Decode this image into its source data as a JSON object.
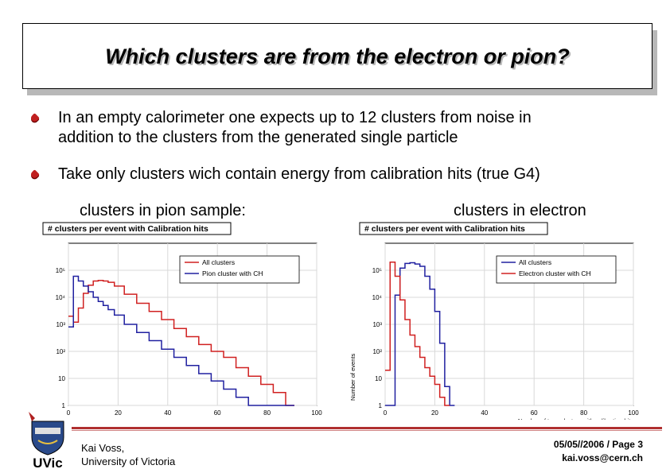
{
  "slide": {
    "title": "Which clusters are from the electron or pion?",
    "bullets": [
      {
        "line1": "In an empty calorimeter one expects up to 12 clusters from noise in",
        "line2": "addition to the clusters from the generated single particle"
      },
      {
        "line1": "Take only clusters wich contain energy from calibration hits (true G4)"
      }
    ],
    "subtitles": {
      "pion": "clusters in pion sample:",
      "electron": "clusters in electron"
    },
    "footer": {
      "author": "Kai  Voss,",
      "institution": "University of Victoria",
      "date_page": "05/05//2006  /  Page 3",
      "email": "kai.voss@cern.ch",
      "logo_text": "UVic"
    }
  },
  "chart_data": [
    {
      "type": "line",
      "title": "# clusters per event with Calibration hits",
      "xlim": [
        0,
        100
      ],
      "x_ticks": [
        "0",
        "20",
        "40",
        "60",
        "80",
        "100"
      ],
      "y_scale": "log",
      "y_ticks": [
        "1",
        "10",
        "10²",
        "10³",
        "10⁴",
        "10⁵"
      ],
      "xlabel": "",
      "ylabel": "",
      "legend": "top-right",
      "series": [
        {
          "name": "All clusters",
          "color": "#d02020",
          "x": [
            1,
            3,
            5,
            7,
            9,
            11,
            13,
            15,
            17,
            20,
            25,
            30,
            35,
            40,
            45,
            50,
            55,
            60,
            65,
            70,
            75,
            80,
            85,
            90
          ],
          "y": [
            2000,
            1200,
            4000,
            14000,
            28000,
            40000,
            42000,
            40000,
            36000,
            26000,
            13000,
            6000,
            3000,
            1500,
            700,
            350,
            180,
            100,
            60,
            25,
            12,
            6,
            3,
            1
          ]
        },
        {
          "name": "Pion cluster with CH",
          "color": "#2020a0",
          "x": [
            1,
            3,
            5,
            7,
            9,
            11,
            13,
            15,
            17,
            20,
            25,
            30,
            35,
            40,
            45,
            50,
            55,
            60,
            65,
            70,
            75,
            80,
            85,
            90
          ],
          "y": [
            800,
            60000,
            40000,
            26000,
            16000,
            10000,
            7000,
            5000,
            3500,
            2200,
            1000,
            500,
            250,
            120,
            60,
            30,
            15,
            8,
            4,
            2,
            1,
            1,
            1,
            1
          ]
        }
      ]
    },
    {
      "type": "line",
      "title": "# clusters per event with Calibration hits",
      "xlim": [
        0,
        100
      ],
      "x_ticks": [
        "0",
        "20",
        "40",
        "60",
        "80",
        "100"
      ],
      "y_scale": "log",
      "y_ticks": [
        "1",
        "10",
        "10²",
        "10³",
        "10⁴",
        "10⁵"
      ],
      "xlabel": "Number of topo clusters with calibration hits",
      "ylabel": "Number of events",
      "legend": "top-right",
      "series": [
        {
          "name": "All clusters",
          "color": "#2020a0",
          "x": [
            1,
            3,
            5,
            7,
            9,
            11,
            13,
            15,
            17,
            19,
            21,
            23,
            25,
            27
          ],
          "y": [
            1,
            1,
            12000,
            120000,
            180000,
            190000,
            170000,
            140000,
            60000,
            20000,
            3000,
            200,
            5,
            1
          ]
        },
        {
          "name": "Electron cluster with CH",
          "color": "#d02020",
          "x": [
            1,
            3,
            5,
            7,
            9,
            11,
            13,
            15,
            17,
            19,
            21,
            23,
            25
          ],
          "y": [
            20,
            200000,
            60000,
            8000,
            1500,
            400,
            150,
            60,
            25,
            12,
            6,
            2,
            1
          ]
        }
      ]
    }
  ]
}
